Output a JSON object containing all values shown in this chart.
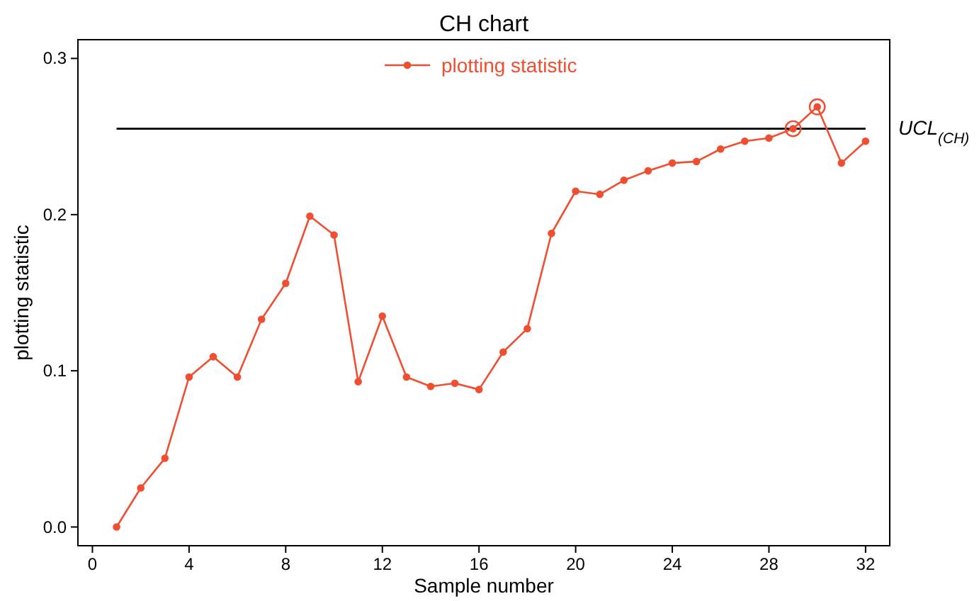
{
  "chart_data": {
    "type": "line",
    "title": "CH chart",
    "xlabel": "Sample number",
    "ylabel": "plotting statistic",
    "x": [
      1,
      2,
      3,
      4,
      5,
      6,
      7,
      8,
      9,
      10,
      11,
      12,
      13,
      14,
      15,
      16,
      17,
      18,
      19,
      20,
      21,
      22,
      23,
      24,
      25,
      26,
      27,
      28,
      29,
      30,
      31,
      32
    ],
    "series": [
      {
        "name": "plotting statistic",
        "color": "#f04e30",
        "marker": "circle",
        "values": [
          0.0,
          0.025,
          0.044,
          0.096,
          0.109,
          0.096,
          0.133,
          0.156,
          0.199,
          0.187,
          0.093,
          0.135,
          0.096,
          0.09,
          0.092,
          0.088,
          0.112,
          0.127,
          0.188,
          0.215,
          0.213,
          0.222,
          0.228,
          0.233,
          0.234,
          0.242,
          0.247,
          0.249,
          0.255,
          0.269,
          0.233,
          0.247
        ]
      },
      {
        "type": "scatter",
        "color": "#f04e30",
        "marker": "circle",
        "x": [
          29,
          30
        ],
        "values": [
          0.255,
          0.269
        ]
      }
    ],
    "ref_lines": [
      {
        "axis": "y",
        "value": 0.255,
        "label": "UCL$_{(CH)}$",
        "color": "#000000"
      }
    ],
    "xlim": [
      -0.6,
      33
    ],
    "xticks": [
      0,
      4,
      8,
      12,
      16,
      20,
      24,
      28,
      32
    ],
    "ylim": [
      -0.012,
      0.312
    ],
    "yticks": [
      {
        "value": 0,
        "label": "0.0"
      },
      0.1,
      0.2,
      0.3
    ],
    "grid": false,
    "legend": "top"
  }
}
